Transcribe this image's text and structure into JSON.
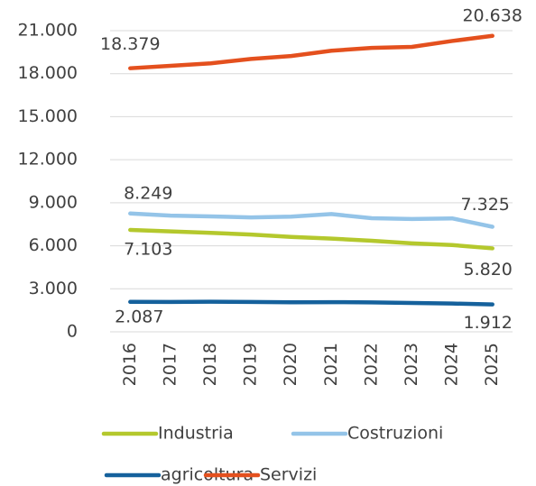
{
  "chart_data": {
    "type": "line",
    "categories": [
      "2016",
      "2017",
      "2018",
      "2019",
      "2020",
      "2021",
      "2022",
      "2023",
      "2024",
      "2025"
    ],
    "series": [
      {
        "name": "Industria",
        "color": "#b4c82d",
        "values": [
          7103,
          7000,
          6900,
          6780,
          6620,
          6500,
          6350,
          6170,
          6050,
          5820
        ],
        "value_labels": [
          "7.103",
          null,
          null,
          null,
          null,
          null,
          null,
          null,
          null,
          "5.820"
        ]
      },
      {
        "name": "Costruzioni",
        "color": "#94c4e8",
        "values": [
          8249,
          8100,
          8050,
          7980,
          8030,
          8210,
          7920,
          7870,
          7910,
          7325
        ],
        "value_labels": [
          "8.249",
          null,
          null,
          null,
          null,
          null,
          null,
          null,
          null,
          "7.325"
        ]
      },
      {
        "name": "agricoltura",
        "color": "#15619c",
        "values": [
          2087,
          2080,
          2100,
          2080,
          2060,
          2070,
          2050,
          2010,
          1970,
          1912
        ],
        "value_labels": [
          "2.087",
          null,
          null,
          null,
          null,
          null,
          null,
          null,
          null,
          "1.912"
        ]
      },
      {
        "name": "Servizi",
        "color": "#e4501e",
        "values": [
          18379,
          18550,
          18720,
          19030,
          19230,
          19600,
          19800,
          19870,
          20280,
          20638
        ],
        "value_labels": [
          "18.379",
          null,
          null,
          null,
          null,
          null,
          null,
          null,
          null,
          "20.638"
        ]
      }
    ],
    "ylim": [
      0,
      21000
    ],
    "yticks": [
      0,
      {
        "value": 3000,
        "label": "3.000"
      },
      {
        "value": 6000,
        "label": "6.000"
      },
      {
        "value": 9000,
        "label": "9.000"
      },
      {
        "value": 12000,
        "label": "12.000"
      },
      {
        "value": 15000,
        "label": "15.000"
      },
      {
        "value": 18000,
        "label": "18.000"
      },
      {
        "value": 21000,
        "label": "21.000"
      }
    ],
    "grid": true
  }
}
